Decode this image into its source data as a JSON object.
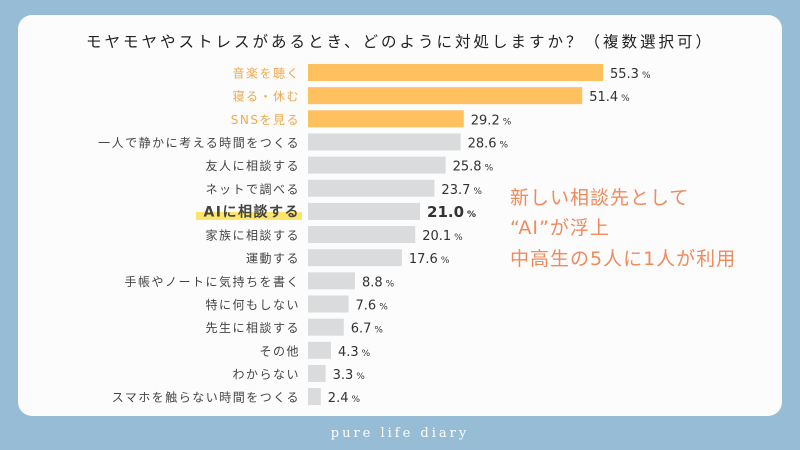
{
  "chart_data": {
    "type": "bar",
    "orientation": "horizontal",
    "title": "モヤモヤやストレスがあるとき、どのように対処しますか？（複数選択可）",
    "categories": [
      "音楽を聴く",
      "寝る・休む",
      "SNSを見る",
      "一人で静かに考える時間をつくる",
      "友人に相談する",
      "ネットで調べる",
      "AIに相談する",
      "家族に相談する",
      "運動する",
      "手帳やノートに気持ちを書く",
      "特に何もしない",
      "先生に相談する",
      "その他",
      "わからない",
      "スマホを触らない時間をつくる"
    ],
    "values": [
      55.3,
      51.4,
      29.2,
      28.6,
      25.8,
      23.7,
      21.0,
      20.1,
      17.6,
      8.8,
      7.6,
      6.7,
      4.3,
      3.3,
      2.4
    ],
    "unit": "%",
    "highlight_top": 3,
    "emphasized_category": "AIに相談する",
    "colors": {
      "top": "#ffc060",
      "top_label": "#eea94e",
      "default": "#d9dbdd",
      "label": "#444444",
      "highlight_marker": "#fbe56a"
    },
    "grid": false
  },
  "annotation": {
    "lines": [
      "新しい相談先として",
      "“AI”が浮上",
      "中高生の5人に1人が利用"
    ]
  },
  "footer": "pure life diary"
}
